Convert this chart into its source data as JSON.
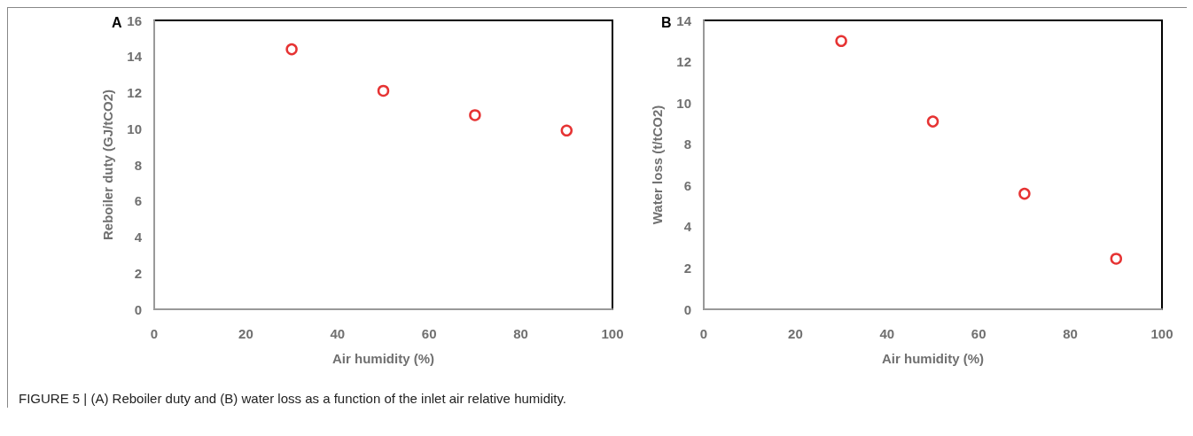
{
  "chart_data": [
    {
      "type": "scatter",
      "title": "A",
      "xlabel": "Air humidity (%)",
      "ylabel": "Reboiler duty (GJ/tCO2)",
      "x": [
        30,
        50,
        70,
        90
      ],
      "values": [
        14.4,
        12.1,
        10.75,
        9.9
      ],
      "color": "#e00000",
      "marker": "circle",
      "xlim": [
        0,
        100
      ],
      "xticks": [
        0,
        20,
        40,
        60,
        80,
        100
      ],
      "ylim": [
        0,
        16
      ],
      "yticks": [
        0,
        2,
        4,
        6,
        8,
        10,
        12,
        14,
        16
      ],
      "annotations": [
        "FIGURE 5 | (A) Reboiler duty and (B) water loss as a function of the inlet air relative humidity."
      ]
    },
    {
      "type": "scatter",
      "title": "B",
      "xlabel": "Air humidity (%)",
      "ylabel": "Water loss (t/tCO2)",
      "x": [
        30,
        50,
        70,
        90
      ],
      "values": [
        13.0,
        9.1,
        5.6,
        2.45
      ],
      "color": "#e00000",
      "marker": "circle",
      "xlim": [
        0,
        100
      ],
      "xticks": [
        0,
        20,
        40,
        60,
        80,
        100
      ],
      "ylim": [
        0,
        14
      ],
      "yticks": [
        0,
        2,
        4,
        6,
        8,
        10,
        12,
        14
      ]
    }
  ]
}
